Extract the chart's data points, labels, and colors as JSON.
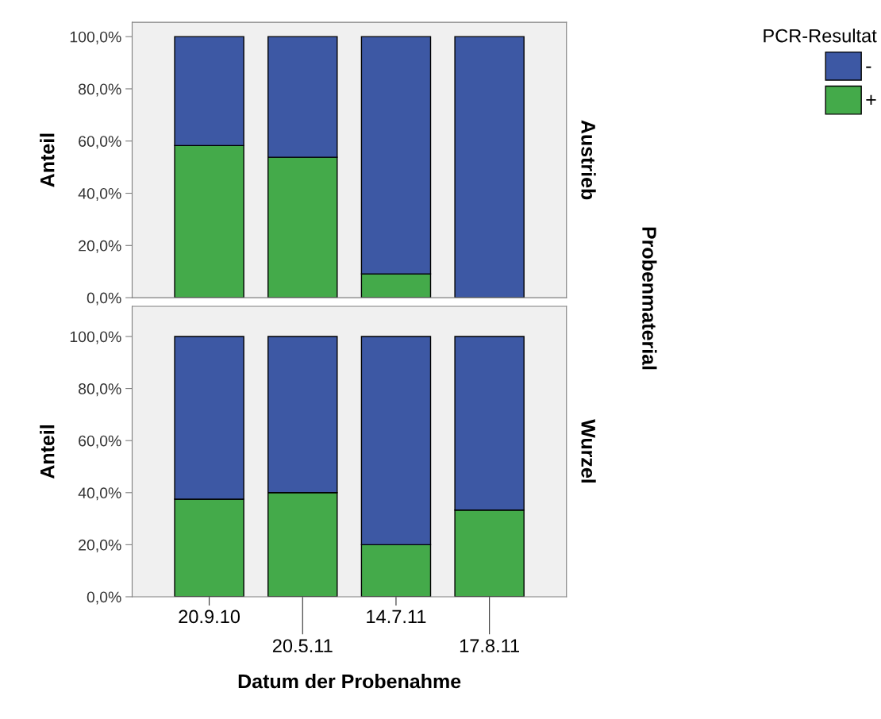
{
  "chart_data": [
    {
      "type": "bar",
      "stacked": true,
      "categories": [
        "20.9.10",
        "20.5.11",
        "14.7.11",
        "17.8.11"
      ],
      "ylabel": "Anteil",
      "y2label": "Austrieb",
      "legend_title": "PCR-Resultat",
      "legend": "top right",
      "tick_labels": "y",
      "annotations": [
        "Probenmaterial"
      ],
      "ylim": [
        0,
        105.5
      ],
      "yticks": [
        {
          "value": 0,
          "label": "0,0%"
        },
        {
          "value": 20,
          "label": "20,0%"
        },
        {
          "value": 40,
          "label": "40,0%"
        },
        {
          "value": 60,
          "label": "60,0%"
        },
        {
          "value": 80,
          "label": "80,0%"
        },
        {
          "value": 100,
          "label": "100,0%"
        }
      ],
      "series": [
        {
          "name": "+",
          "color": "#44aa4a",
          "values": [
            58.3,
            53.8,
            9.1,
            0
          ]
        },
        {
          "name": "-",
          "color": "#3d58a4",
          "values": [
            41.7,
            46.2,
            90.9,
            100
          ]
        }
      ]
    },
    {
      "type": "bar",
      "stacked": true,
      "categories": [
        "20.9.10",
        "20.5.11",
        "14.7.11",
        "17.8.11"
      ],
      "ylabel": "Anteil",
      "y2label": "Wurzel",
      "xlabel": "Datum der Probenahme",
      "ylim": [
        0,
        111.6
      ],
      "yticks": [
        {
          "value": 0,
          "label": "0,0%"
        },
        {
          "value": 20,
          "label": "20,0%"
        },
        {
          "value": 40,
          "label": "40,0%"
        },
        {
          "value": 60,
          "label": "60,0%"
        },
        {
          "value": 80,
          "label": "80,0%"
        },
        {
          "value": 100,
          "label": "100,0%"
        }
      ],
      "series": [
        {
          "color": "#44aa4a",
          "values": [
            37.5,
            40,
            20,
            33.3
          ]
        },
        {
          "color": "#3d58a4",
          "values": [
            62.5,
            60,
            80,
            66.7
          ]
        }
      ]
    }
  ]
}
